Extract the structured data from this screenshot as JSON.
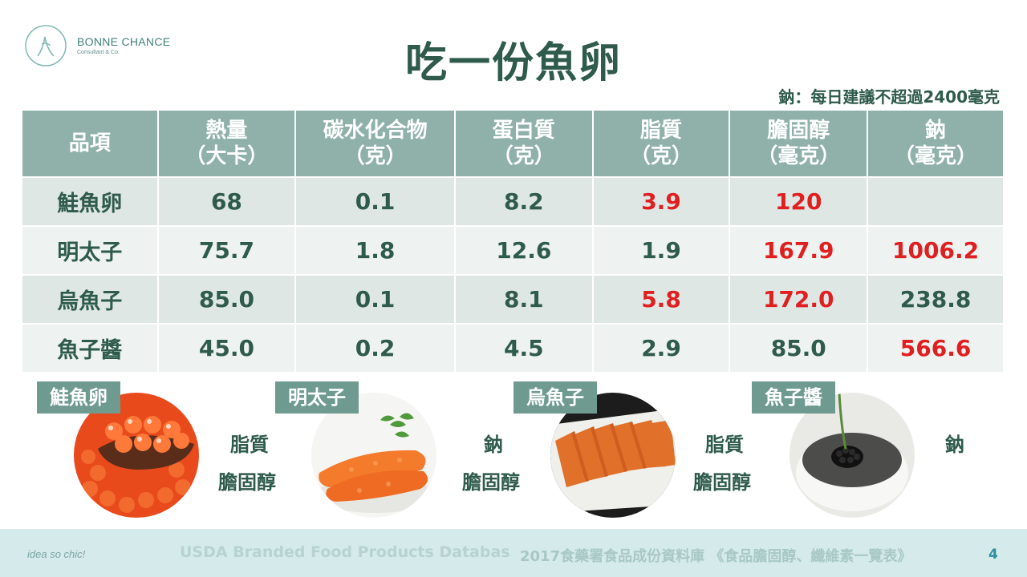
{
  "brand": {
    "name": "BONNE CHANCE",
    "subtitle": "Consultant & Co."
  },
  "title": "吃一份魚卵",
  "note": "鈉：每日建議不超過2400毫克",
  "table": {
    "headers": [
      {
        "line1": "品項",
        "line2": ""
      },
      {
        "line1": "熱量",
        "line2": "（大卡）"
      },
      {
        "line1": "碳水化合物",
        "line2": "（克）"
      },
      {
        "line1": "蛋白質",
        "line2": "（克）"
      },
      {
        "line1": "脂質",
        "line2": "（克）"
      },
      {
        "line1": "膽固醇",
        "line2": "（毫克）"
      },
      {
        "line1": "鈉",
        "line2": "（毫克）"
      }
    ],
    "rows": [
      [
        "鮭魚卵",
        "68",
        "0.1",
        "8.2",
        "3.9",
        "120",
        ""
      ],
      [
        "明太子",
        "75.7",
        "1.8",
        "12.6",
        "1.9",
        "167.9",
        "1006.2"
      ],
      [
        "烏魚子",
        "85.0",
        "0.1",
        "8.1",
        "5.8",
        "172.0",
        "238.8"
      ],
      [
        "魚子醬",
        "45.0",
        "0.2",
        "4.5",
        "2.9",
        "85.0",
        "566.6"
      ]
    ],
    "highlight_color": "#e02020"
  },
  "foods": [
    {
      "label": "鮭魚卵",
      "notes": [
        "脂質",
        "膽固醇"
      ]
    },
    {
      "label": "明太子",
      "notes": [
        "鈉",
        "膽固醇"
      ]
    },
    {
      "label": "烏魚子",
      "notes": [
        "脂質",
        "膽固醇"
      ]
    },
    {
      "label": "魚子醬",
      "notes": [
        "鈉"
      ]
    }
  ],
  "footer": {
    "slogan": "idea so chic!",
    "source1": "USDA Branded Food Products Databas",
    "source2": "2017食藥署食品成份資料庫 《食品膽固醇、纖維素一覽表》",
    "page_number": "4"
  },
  "colors": {
    "title": "#2f5b4c",
    "header_bg": "#8fb1aa",
    "tag_bg": "#6f9a90",
    "footer_bg": "#d5eaea"
  }
}
